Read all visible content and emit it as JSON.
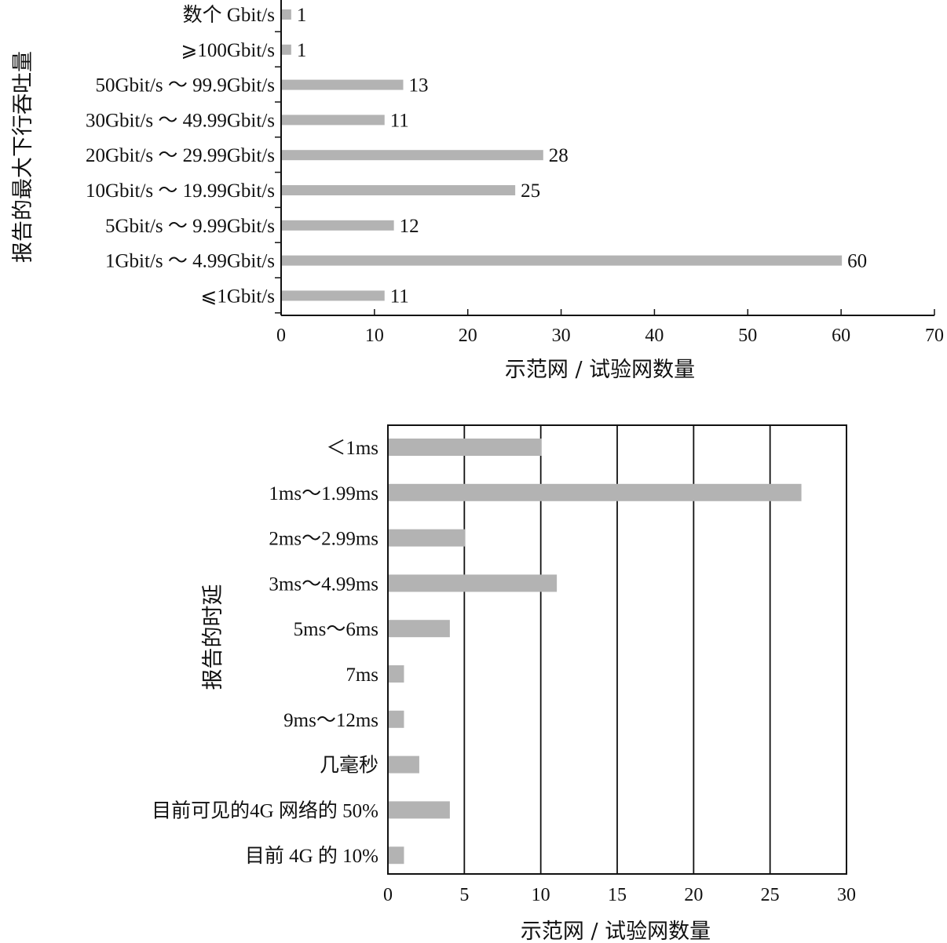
{
  "chart_data": [
    {
      "type": "bar",
      "orientation": "horizontal",
      "categories": [
        "数个 Gbit/s",
        "⩾100Gbit/s",
        "50Gbit/s ～ 99.9Gbit/s",
        "30Gbit/s ～ 49.99Gbit/s",
        "20Gbit/s ～ 29.99Gbit/s",
        "10Gbit/s ～ 19.99Gbit/s",
        "5Gbit/s ～ 9.99Gbit/s",
        "1Gbit/s ～ 4.99Gbit/s",
        "⩽1Gbit/s"
      ],
      "values": [
        1,
        1,
        13,
        11,
        28,
        25,
        12,
        60,
        11
      ],
      "data_labels": [
        "1",
        "1",
        "13",
        "11",
        "28",
        "25",
        "12",
        "60",
        "11"
      ],
      "xlabel": "示范网 / 试验网数量",
      "ylabel": "报告的最大下行吞吐量",
      "xlim": [
        0,
        70
      ],
      "xticks": [
        "0",
        "10",
        "20",
        "30",
        "40",
        "50",
        "60",
        "70"
      ],
      "grid": false,
      "bar_color": "#b3b3b3"
    },
    {
      "type": "bar",
      "orientation": "horizontal",
      "categories": [
        "＜1ms",
        "1ms～1.99ms",
        "2ms～2.99ms",
        "3ms～4.99ms",
        "5ms～6ms",
        "7ms",
        "9ms～12ms",
        "几毫秒",
        "目前可见的4G 网络的 50%",
        "目前 4G 的 10%"
      ],
      "values": [
        10,
        27,
        5,
        11,
        4,
        1,
        1,
        2,
        4,
        1
      ],
      "xlabel": "示范网 / 试验网数量",
      "ylabel": "报告的时延",
      "xlim": [
        0,
        30
      ],
      "xticks": [
        "0",
        "5",
        "10",
        "15",
        "20",
        "25",
        "30"
      ],
      "grid": true,
      "bar_color": "#b3b3b3"
    }
  ]
}
